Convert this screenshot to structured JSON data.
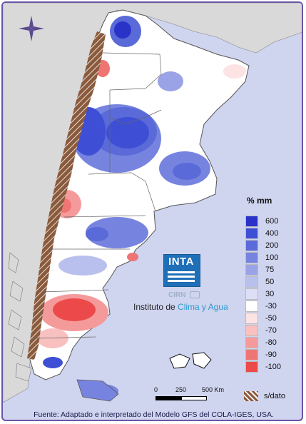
{
  "legend": {
    "title": "% mm",
    "items": [
      {
        "label": "600",
        "color": "#2a32c8"
      },
      {
        "label": "400",
        "color": "#3e4fd6"
      },
      {
        "label": "200",
        "color": "#5a6ad8"
      },
      {
        "label": "100",
        "color": "#7784df"
      },
      {
        "label": "75",
        "color": "#9aa3e6"
      },
      {
        "label": "50",
        "color": "#bac0ee"
      },
      {
        "label": "30",
        "color": "#dcdff6"
      },
      {
        "label": "-30",
        "color": "#ffffff"
      },
      {
        "label": "-50",
        "color": "#fde3e3"
      },
      {
        "label": "-70",
        "color": "#f9c0c0"
      },
      {
        "label": "-80",
        "color": "#f59a9a"
      },
      {
        "label": "-90",
        "color": "#ef7474"
      },
      {
        "label": "-100",
        "color": "#ec4a4a"
      }
    ],
    "nodata_label": "s/dato"
  },
  "logo": {
    "name": "INTA",
    "brand_color": "#1f6fb8",
    "sub": "CIRN",
    "institute_prefix": "Instituto de ",
    "institute_accent": "Clima y Agua"
  },
  "scale_bar": {
    "labels": [
      "0",
      "250",
      "500 Km"
    ]
  },
  "footer": "Fuente: Adaptado e interpretado del Modelo GFS del COLA-IGES, USA.",
  "colors": {
    "ocean": "#cfd4ef",
    "neighbors": "#d9d9d9",
    "frame": "#6a56a8",
    "nodata": "#8a5a3c"
  }
}
